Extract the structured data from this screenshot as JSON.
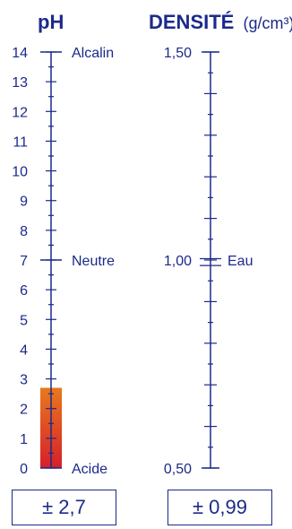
{
  "colors": {
    "scale": "#1b2a8a",
    "ph_fill_top": "#e8791e",
    "ph_fill_bottom": "#d6202a"
  },
  "ph_scale": {
    "title": "pH",
    "min": 0,
    "max": 14,
    "tick_labels": [
      "0",
      "1",
      "2",
      "3",
      "4",
      "5",
      "6",
      "7",
      "8",
      "9",
      "10",
      "11",
      "12",
      "13",
      "14"
    ],
    "annotations": [
      {
        "value": 14,
        "label": "Alcalin"
      },
      {
        "value": 7,
        "label": "Neutre"
      },
      {
        "value": 0,
        "label": "Acide"
      }
    ],
    "fill_value": 2.7,
    "readout": "± 2,7"
  },
  "density_scale": {
    "title": "DENSITÉ",
    "unit": "(g/cm³)",
    "min": 0.5,
    "max": 1.5,
    "tick_labels": [
      {
        "value": 1.5,
        "text": "1,50"
      },
      {
        "value": 1.0,
        "text": "1,00"
      },
      {
        "value": 0.5,
        "text": "0,50"
      }
    ],
    "annotations": [
      {
        "value": 1.0,
        "label": "Eau"
      }
    ],
    "marker_value": 0.99,
    "readout": "± 0,99"
  }
}
